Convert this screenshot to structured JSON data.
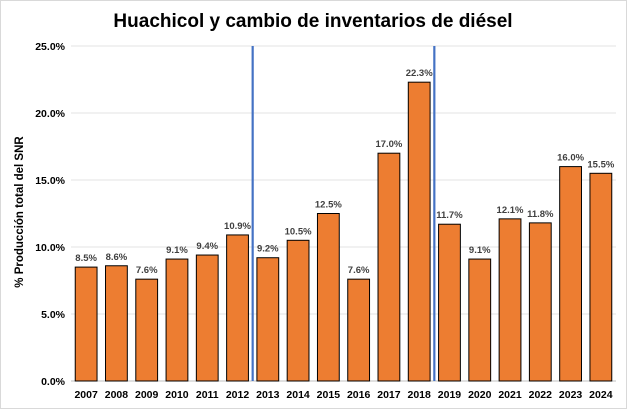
{
  "chart_data": {
    "type": "bar",
    "title": "Huachicol y cambio de inventarios de diésel",
    "ylabel": "% Producción total del SNR",
    "xlabel": "",
    "categories": [
      "2007",
      "2008",
      "2009",
      "2010",
      "2011",
      "2012",
      "2013",
      "2014",
      "2015",
      "2016",
      "2017",
      "2018",
      "2019",
      "2020",
      "2021",
      "2022",
      "2023",
      "2024"
    ],
    "values": [
      8.5,
      8.6,
      7.6,
      9.1,
      9.4,
      10.9,
      9.2,
      10.5,
      12.5,
      7.6,
      17.0,
      22.3,
      11.7,
      9.1,
      12.1,
      11.8,
      16.0,
      15.5
    ],
    "data_labels": [
      "8.5%",
      "8.6%",
      "7.6%",
      "9.1%",
      "9.4%",
      "10.9%",
      "9.2%",
      "10.5%",
      "12.5%",
      "7.6%",
      "17.0%",
      "22.3%",
      "11.7%",
      "9.1%",
      "12.1%",
      "11.8%",
      "16.0%",
      "15.5%"
    ],
    "ylim": [
      0,
      25
    ],
    "yticks": [
      0,
      5,
      10,
      15,
      20,
      25
    ],
    "ytick_labels": [
      "0.0%",
      "5.0%",
      "10.0%",
      "15.0%",
      "20.0%",
      "25.0%"
    ],
    "grid": true,
    "legend": "none",
    "bar_color": "#ED7D31",
    "vertical_markers": [
      {
        "between": [
          "2012",
          "2013"
        ],
        "color": "#4472C4"
      },
      {
        "between": [
          "2018",
          "2019"
        ],
        "color": "#4472C4"
      }
    ]
  }
}
